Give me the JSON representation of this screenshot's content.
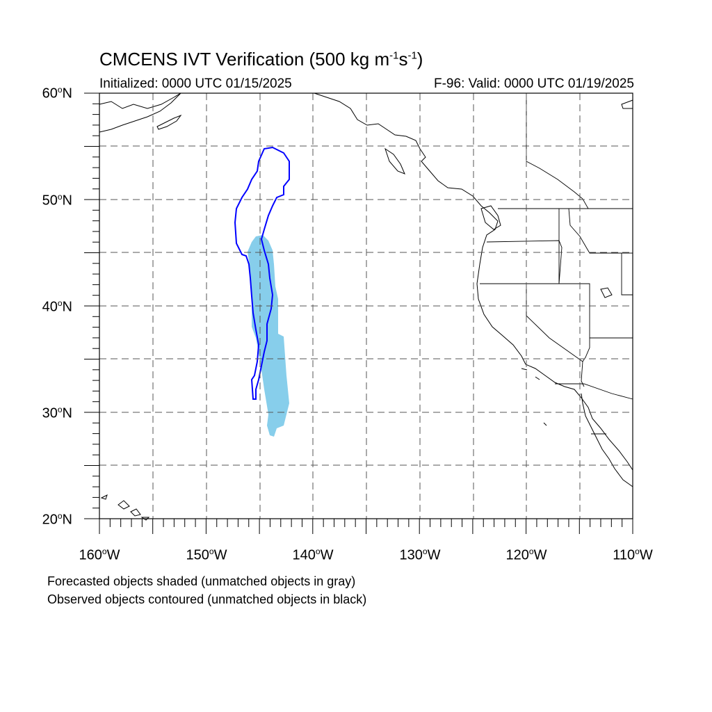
{
  "title": {
    "main": "CMCENS IVT Verification (500 kg m",
    "exp1": "-1",
    "mid": "s",
    "exp2": "-1",
    "close": ")"
  },
  "init_label": "Initialized: 0000 UTC 01/15/2025",
  "valid_label": "F-96: Valid: 0000 UTC 01/19/2025",
  "lat_labels": [
    {
      "deg": "60",
      "hemi": "N"
    },
    {
      "deg": "50",
      "hemi": "N"
    },
    {
      "deg": "40",
      "hemi": "N"
    },
    {
      "deg": "30",
      "hemi": "N"
    },
    {
      "deg": "20",
      "hemi": "N"
    }
  ],
  "lon_labels": [
    {
      "deg": "160",
      "hemi": "W"
    },
    {
      "deg": "150",
      "hemi": "W"
    },
    {
      "deg": "140",
      "hemi": "W"
    },
    {
      "deg": "130",
      "hemi": "W"
    },
    {
      "deg": "120",
      "hemi": "W"
    },
    {
      "deg": "110",
      "hemi": "W"
    }
  ],
  "notes": {
    "forecast": "Forecasted objects shaded (unmatched objects in gray)",
    "observed": "Observed objects contoured (unmatched objects in black)"
  },
  "map": {
    "lon_range": [
      -160,
      -110
    ],
    "lat_range": [
      20,
      60
    ],
    "grid_spacing_deg": 5,
    "forecast_object_color": "#87CEEB",
    "observed_contour_color": "#0000FF"
  }
}
